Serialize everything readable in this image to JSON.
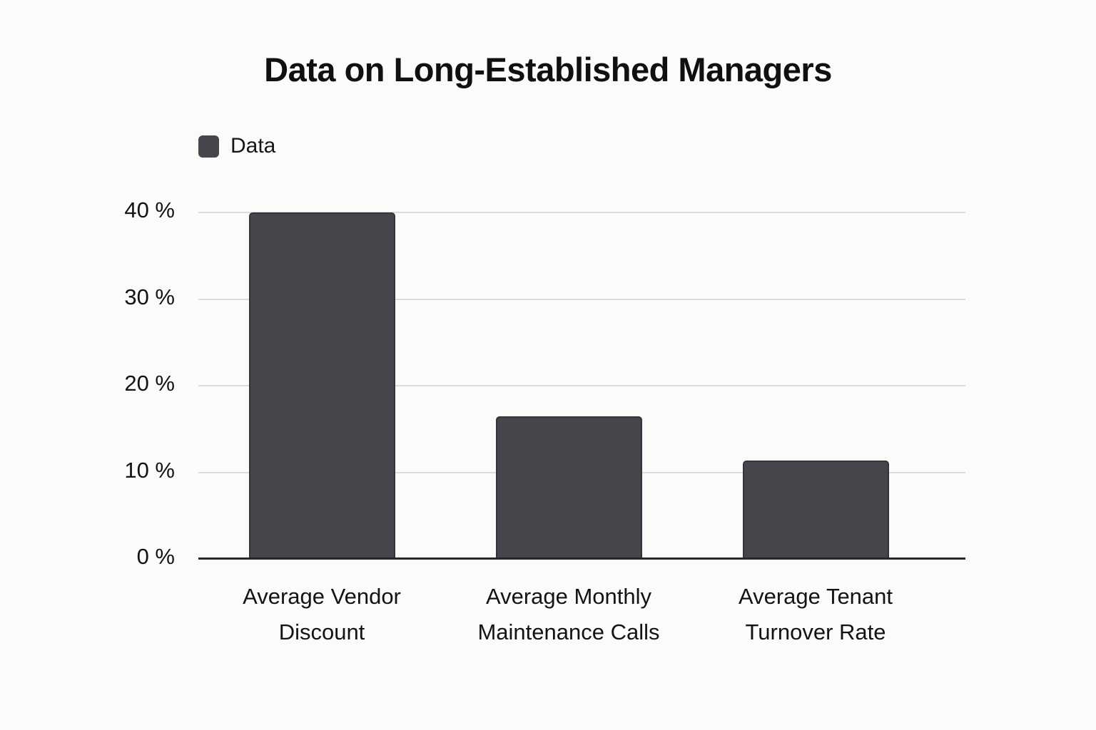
{
  "title": "Data on Long-Established Managers",
  "legend": {
    "label": "Data",
    "swatch_color": "#44464B"
  },
  "chart_data": {
    "type": "bar",
    "title": "Data on Long-Established Managers",
    "categories": [
      "Average Vendor Discount",
      "Average Monthly Maintenance Calls",
      "Average Tenant Turnover Rate"
    ],
    "category_lines": [
      [
        "Average Vendor",
        "Discount"
      ],
      [
        "Average Monthly",
        "Maintenance Calls"
      ],
      [
        "Average Tenant",
        "Turnover Rate"
      ]
    ],
    "series": [
      {
        "name": "Data",
        "values": [
          40,
          16.5,
          11.4
        ]
      }
    ],
    "xlabel": "",
    "ylabel": "",
    "ylim": [
      0,
      40
    ],
    "yticks": [
      0,
      10,
      20,
      30,
      40
    ],
    "ytick_labels": [
      "0 %",
      "10 %",
      "20 %",
      "30 %",
      "40 %"
    ],
    "grid": true,
    "legend_position": "top-left",
    "bar_color": "#44464B",
    "bar_border_color": "#323438",
    "gridline_color": "#DBDBDB",
    "axis_color": "#26272A",
    "text_color": "#161616",
    "background_color": "#FBFBFA"
  }
}
